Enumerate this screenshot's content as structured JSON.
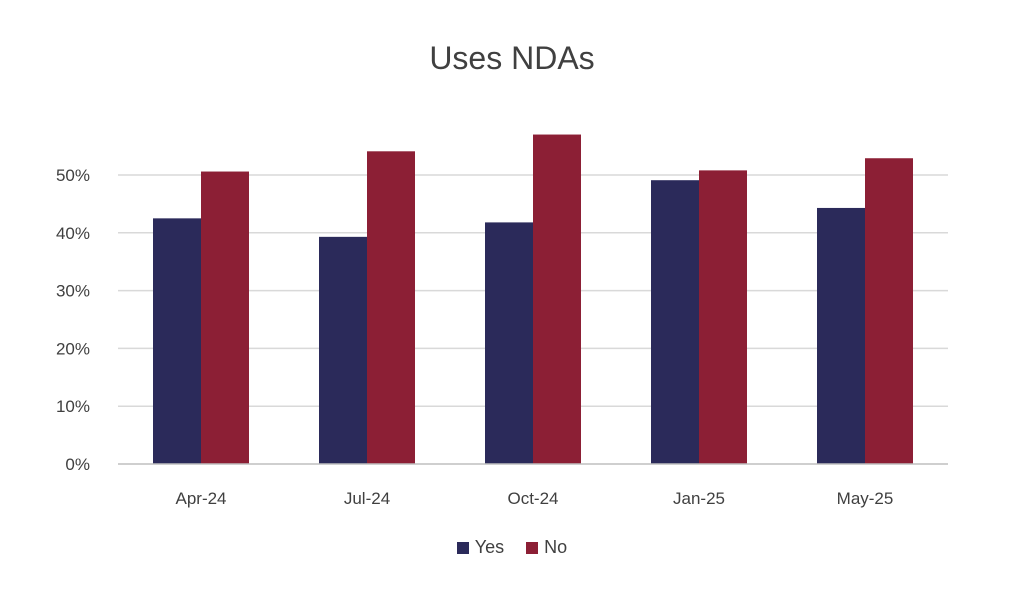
{
  "chart_data": {
    "type": "bar",
    "title": "Uses NDAs",
    "categories": [
      "Apr-24",
      "Jul-24",
      "Oct-24",
      "Jan-25",
      "May-25"
    ],
    "series": [
      {
        "name": "Yes",
        "color": "#2b2a5a",
        "values": [
          42.5,
          39.3,
          41.8,
          49.1,
          44.3
        ]
      },
      {
        "name": "No",
        "color": "#8c1f35",
        "values": [
          50.6,
          54.1,
          57.0,
          50.8,
          52.9
        ]
      }
    ],
    "y_ticks": [
      "0%",
      "10%",
      "20%",
      "30%",
      "40%",
      "50%"
    ],
    "ylim": [
      0,
      60
    ],
    "grid": true,
    "legend_position": "bottom"
  }
}
